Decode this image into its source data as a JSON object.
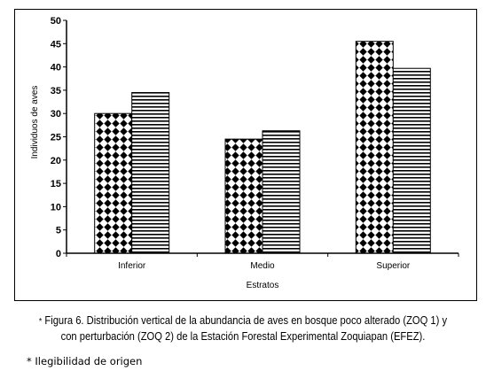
{
  "chart_data": {
    "type": "bar",
    "categories": [
      "Inferior",
      "Medio",
      "Superior"
    ],
    "series": [
      {
        "values": [
          30,
          24.5,
          45.5
        ],
        "pattern": "diamond"
      },
      {
        "values": [
          34.5,
          26.3,
          39.7
        ],
        "pattern": "hstripe"
      }
    ],
    "xlabel": "Estratos",
    "ylabel": "Individuos de aves",
    "ylim": [
      0,
      50
    ],
    "yticks": [
      "0",
      "5",
      "10",
      "15",
      "20",
      "25",
      "30",
      "35",
      "40",
      "45",
      "50"
    ],
    "grid": false
  },
  "caption": {
    "marker": "*",
    "line1": "Figura 6. Distribución vertical de la abundancia de aves en bosque poco alterado (ZOQ 1) y",
    "line2": "con perturbación (ZOQ 2) de la Estación Forestal Experimental Zoquiapan (EFEZ)."
  },
  "note": "* Ilegibilidad de origen"
}
